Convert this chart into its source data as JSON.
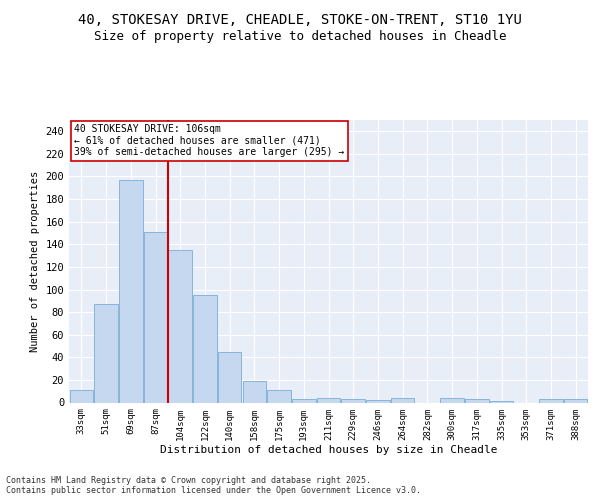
{
  "title_line1": "40, STOKESAY DRIVE, CHEADLE, STOKE-ON-TRENT, ST10 1YU",
  "title_line2": "Size of property relative to detached houses in Cheadle",
  "xlabel": "Distribution of detached houses by size in Cheadle",
  "ylabel": "Number of detached properties",
  "categories": [
    "33sqm",
    "51sqm",
    "69sqm",
    "87sqm",
    "104sqm",
    "122sqm",
    "140sqm",
    "158sqm",
    "175sqm",
    "193sqm",
    "211sqm",
    "229sqm",
    "246sqm",
    "264sqm",
    "282sqm",
    "300sqm",
    "317sqm",
    "335sqm",
    "353sqm",
    "371sqm",
    "388sqm"
  ],
  "values": [
    11,
    87,
    197,
    151,
    135,
    95,
    45,
    19,
    11,
    3,
    4,
    3,
    2,
    4,
    0,
    4,
    3,
    1,
    0,
    3,
    3
  ],
  "bar_color": "#c5d8f0",
  "bar_edge_color": "#7aadd4",
  "vline_color": "#cc0000",
  "annotation_text": "40 STOKESAY DRIVE: 106sqm\n← 61% of detached houses are smaller (471)\n39% of semi-detached houses are larger (295) →",
  "annotation_box_color": "#ffffff",
  "annotation_box_edge": "#cc0000",
  "yticks": [
    0,
    20,
    40,
    60,
    80,
    100,
    120,
    140,
    160,
    180,
    200,
    220,
    240
  ],
  "ylim": [
    0,
    250
  ],
  "background_color": "#e8eef8",
  "footer_text": "Contains HM Land Registry data © Crown copyright and database right 2025.\nContains public sector information licensed under the Open Government Licence v3.0.",
  "title_fontsize": 10,
  "subtitle_fontsize": 9
}
